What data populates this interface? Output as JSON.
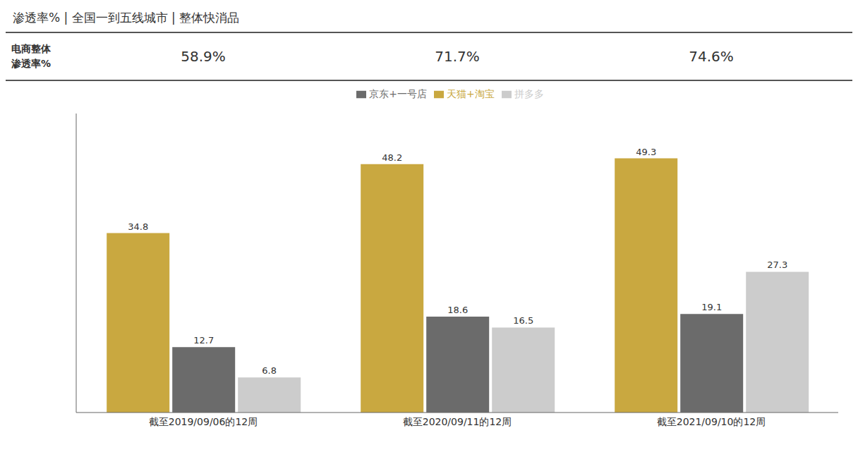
{
  "chart_data": {
    "type": "bar",
    "title": "渗透率% | 全国一到五线城市 | 整体快消品",
    "header": {
      "label": "电商整体\n渗透率%",
      "values": [
        "58.9%",
        "71.7%",
        "74.6%"
      ]
    },
    "categories": [
      "截至2019/09/06的12周",
      "截至2020/09/11的12周",
      "截至2021/09/10的12周"
    ],
    "series": [
      {
        "name": "天猫+淘宝",
        "color": "#C9A840",
        "values": [
          34.8,
          48.2,
          49.3
        ]
      },
      {
        "name": "京东+一号店",
        "color": "#6B6B6B",
        "values": [
          12.7,
          18.6,
          19.1
        ]
      },
      {
        "name": "拼多多",
        "color": "#CCCCCC",
        "values": [
          6.8,
          16.5,
          27.3
        ]
      }
    ],
    "ylim": [
      0,
      58
    ],
    "grid": false,
    "data_labels": true,
    "tick_labels": "x"
  }
}
